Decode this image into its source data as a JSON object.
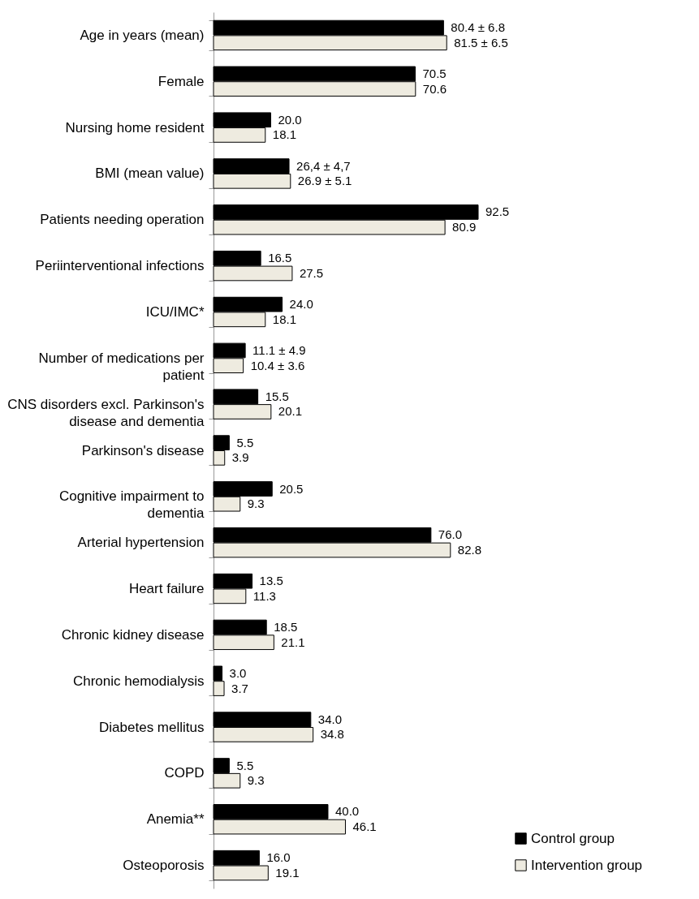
{
  "chart_data": {
    "type": "bar",
    "orientation": "horizontal",
    "legend": "bottom right",
    "categories": [
      "Age in years (mean)",
      "Female",
      "Nursing home resident",
      "BMI (mean value)",
      "Patients needing operation",
      "Periinterventional infections",
      "ICU/IMC*",
      "Number of medications per patient",
      "CNS disorders excl. Parkinson's disease and dementia",
      "Parkinson's disease",
      "Cognitive impairment to dementia",
      "Arterial hypertension",
      "Heart failure",
      "Chronic kidney disease",
      "Chronic hemodialysis",
      "Diabetes mellitus",
      "COPD",
      "Anemia**",
      "Osteoporosis"
    ],
    "series": [
      {
        "name": "Control group",
        "color": "#000000",
        "values": [
          80.4,
          70.5,
          20.0,
          26.4,
          92.5,
          16.5,
          24.0,
          11.1,
          15.5,
          5.5,
          20.5,
          76.0,
          13.5,
          18.5,
          3.0,
          34.0,
          5.5,
          40.0,
          16.0
        ],
        "value_labels": [
          "80.4 ± 6.8",
          "70.5",
          "20.0",
          "26,4 ± 4,7",
          "92.5",
          "16.5",
          "24.0",
          "11.1 ± 4.9",
          "15.5",
          "5.5",
          "20.5",
          "76.0",
          "13.5",
          "18.5",
          "3.0",
          "34.0",
          "5.5",
          "40.0",
          "16.0"
        ]
      },
      {
        "name": "Intervention group",
        "color": "#eeebe0",
        "values": [
          81.5,
          70.6,
          18.1,
          26.9,
          80.9,
          27.5,
          18.1,
          10.4,
          20.1,
          3.9,
          9.3,
          82.8,
          11.3,
          21.1,
          3.7,
          34.8,
          9.3,
          46.1,
          19.1
        ],
        "value_labels": [
          "81.5 ± 6.5",
          "70.6",
          "18.1",
          "26.9 ± 5.1",
          "80.9",
          "27.5",
          "18.1",
          "10.4 ± 3.6",
          "20.1",
          "3.9",
          "9.3",
          "82.8",
          "11.3",
          "21.1",
          "3.7",
          "34.8",
          "9.3",
          "46.1",
          "19.1"
        ]
      }
    ]
  }
}
